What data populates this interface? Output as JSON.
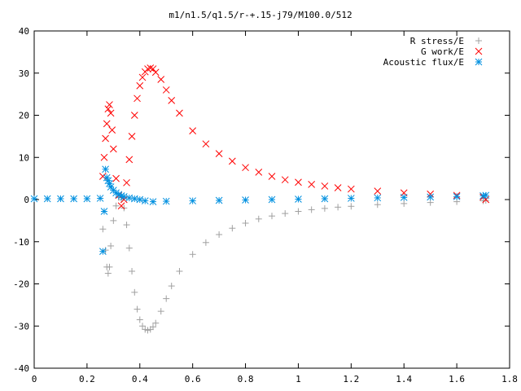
{
  "chart_data": {
    "type": "scatter",
    "title": "m1/n1.5/q1.5/r-+.15-j79/M100.0/512",
    "xlabel": "",
    "ylabel": "",
    "xlim": [
      0,
      1.8
    ],
    "ylim": [
      -40,
      40
    ],
    "xticks": [
      "0",
      "0.2",
      "0.4",
      "0.6",
      "0.8",
      "1",
      "1.2",
      "1.4",
      "1.6",
      "1.8"
    ],
    "yticks": [
      "-40",
      "-30",
      "-20",
      "-10",
      "0",
      "10",
      "20",
      "30",
      "40"
    ],
    "grid": false,
    "legend_position": "top-right",
    "series": [
      {
        "name": "R stress/E",
        "marker": "plus",
        "color": "#a0a0a0",
        "x": [
          0.26,
          0.27,
          0.275,
          0.28,
          0.285,
          0.29,
          0.3,
          0.31,
          0.32,
          0.33,
          0.34,
          0.35,
          0.36,
          0.37,
          0.38,
          0.39,
          0.4,
          0.41,
          0.42,
          0.43,
          0.44,
          0.45,
          0.46,
          0.48,
          0.5,
          0.52,
          0.55,
          0.6,
          0.65,
          0.7,
          0.75,
          0.8,
          0.85,
          0.9,
          0.95,
          1.0,
          1.05,
          1.1,
          1.15,
          1.2,
          1.3,
          1.4,
          1.5,
          1.6,
          1.7,
          1.71
        ],
        "y": [
          -7.0,
          -12.0,
          -16.0,
          -17.5,
          -16.0,
          -11.0,
          -5.0,
          -1.5,
          0.5,
          0.0,
          -2.0,
          -6.0,
          -11.5,
          -17.0,
          -22.0,
          -26.0,
          -28.5,
          -30.0,
          -30.8,
          -31.0,
          -30.8,
          -30.2,
          -29.3,
          -26.5,
          -23.5,
          -20.5,
          -17.0,
          -13.0,
          -10.2,
          -8.3,
          -6.8,
          -5.6,
          -4.6,
          -3.9,
          -3.3,
          -2.8,
          -2.4,
          -2.1,
          -1.8,
          -1.6,
          -1.2,
          -0.95,
          -0.7,
          -0.5,
          -0.3,
          -0.2
        ]
      },
      {
        "name": "G work/E",
        "marker": "cross",
        "color": "#ff0000",
        "x": [
          0.26,
          0.265,
          0.27,
          0.275,
          0.28,
          0.285,
          0.29,
          0.295,
          0.3,
          0.31,
          0.32,
          0.33,
          0.34,
          0.35,
          0.36,
          0.37,
          0.38,
          0.39,
          0.4,
          0.41,
          0.42,
          0.43,
          0.44,
          0.45,
          0.46,
          0.48,
          0.5,
          0.52,
          0.55,
          0.6,
          0.65,
          0.7,
          0.75,
          0.8,
          0.85,
          0.9,
          0.95,
          1.0,
          1.05,
          1.1,
          1.15,
          1.2,
          1.3,
          1.4,
          1.5,
          1.6,
          1.7,
          1.71
        ],
        "y": [
          5.5,
          10.0,
          14.5,
          18.0,
          21.5,
          22.5,
          20.5,
          16.5,
          12.0,
          5.0,
          1.0,
          -1.5,
          0.0,
          4.0,
          9.5,
          15.0,
          20.0,
          24.0,
          27.0,
          29.0,
          30.3,
          31.0,
          31.2,
          31.0,
          30.2,
          28.5,
          26.0,
          23.5,
          20.5,
          16.3,
          13.2,
          10.9,
          9.1,
          7.6,
          6.5,
          5.5,
          4.7,
          4.1,
          3.6,
          3.2,
          2.8,
          2.5,
          2.0,
          1.6,
          1.3,
          1.0,
          0.6,
          0.0
        ]
      },
      {
        "name": "Acoustic flux/E",
        "marker": "star",
        "color": "#0090e0",
        "x": [
          0.0,
          0.05,
          0.1,
          0.15,
          0.2,
          0.25,
          0.26,
          0.265,
          0.27,
          0.275,
          0.28,
          0.285,
          0.29,
          0.3,
          0.31,
          0.32,
          0.33,
          0.34,
          0.36,
          0.38,
          0.4,
          0.42,
          0.45,
          0.5,
          0.6,
          0.7,
          0.8,
          0.9,
          1.0,
          1.1,
          1.2,
          1.3,
          1.4,
          1.5,
          1.6,
          1.7,
          1.71
        ],
        "y": [
          0.2,
          0.2,
          0.2,
          0.2,
          0.2,
          0.3,
          -12.3,
          -2.8,
          7.2,
          5.2,
          4.5,
          3.8,
          3.0,
          2.2,
          1.6,
          1.2,
          0.9,
          0.7,
          0.4,
          0.2,
          0.0,
          -0.3,
          -0.5,
          -0.4,
          -0.3,
          -0.2,
          -0.1,
          0.0,
          0.1,
          0.2,
          0.3,
          0.4,
          0.5,
          0.6,
          0.7,
          0.9,
          1.0
        ]
      }
    ]
  }
}
